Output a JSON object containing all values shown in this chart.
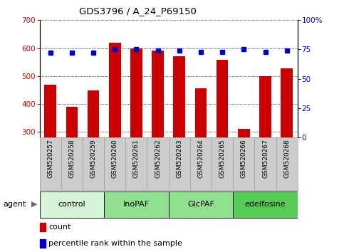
{
  "title": "GDS3796 / A_24_P69150",
  "samples": [
    "GSM520257",
    "GSM520258",
    "GSM520259",
    "GSM520260",
    "GSM520261",
    "GSM520262",
    "GSM520263",
    "GSM520264",
    "GSM520265",
    "GSM520266",
    "GSM520267",
    "GSM520268"
  ],
  "counts": [
    468,
    390,
    447,
    620,
    600,
    590,
    570,
    455,
    558,
    310,
    500,
    527
  ],
  "percentiles": [
    72,
    72,
    72,
    75,
    75,
    74,
    74,
    73,
    73,
    75,
    73,
    74
  ],
  "groups": [
    {
      "label": "control",
      "start": 0,
      "end": 3,
      "color": "#d6f5d6"
    },
    {
      "label": "InoPAF",
      "start": 3,
      "end": 6,
      "color": "#90e090"
    },
    {
      "label": "GlcPAF",
      "start": 6,
      "end": 9,
      "color": "#90e090"
    },
    {
      "label": "edelfosine",
      "start": 9,
      "end": 12,
      "color": "#55cc55"
    }
  ],
  "ylim_left": [
    280,
    700
  ],
  "ylim_right": [
    0,
    100
  ],
  "yticks_left": [
    300,
    400,
    500,
    600,
    700
  ],
  "yticks_right": [
    0,
    25,
    50,
    75,
    100
  ],
  "bar_color": "#cc0000",
  "dot_color": "#0000cc",
  "background_color": "#ffffff",
  "agent_label": "agent",
  "legend_count": "count",
  "legend_percentile": "percentile rank within the sample",
  "sample_bg_color": "#cccccc",
  "sample_border_color": "#999999"
}
